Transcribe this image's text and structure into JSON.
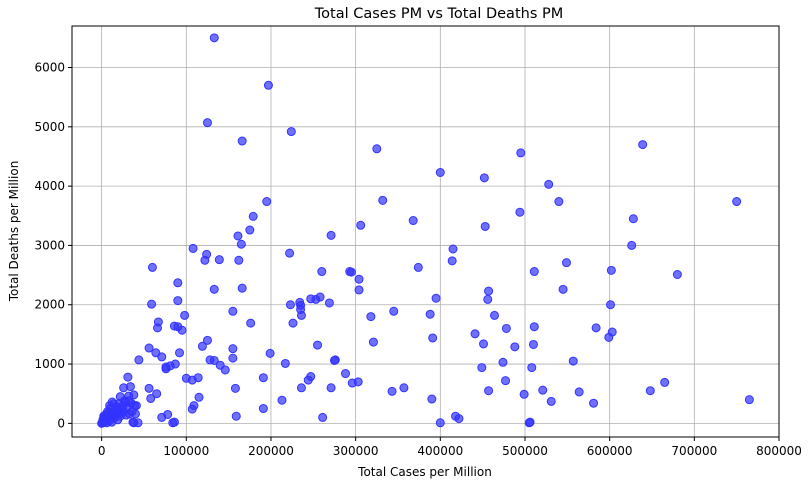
{
  "chart_data": {
    "type": "scatter",
    "title": "Total Cases PM vs Total Deaths PM",
    "xlabel": "Total Cases per Million",
    "ylabel": "Total Deaths per Million",
    "xlim": [
      -35000,
      800000
    ],
    "ylim": [
      -230,
      6700
    ],
    "xticks": [
      0,
      100000,
      200000,
      300000,
      400000,
      500000,
      600000,
      700000,
      800000
    ],
    "xtick_labels": [
      "0",
      "100000",
      "200000",
      "300000",
      "400000",
      "500000",
      "600000",
      "700000",
      "800000"
    ],
    "yticks": [
      0,
      1000,
      2000,
      3000,
      4000,
      5000,
      6000
    ],
    "ytick_labels": [
      "0",
      "1000",
      "2000",
      "3000",
      "4000",
      "5000",
      "6000"
    ],
    "grid": true,
    "marker_color": "#3333ff",
    "points": [
      [
        133000,
        6500
      ],
      [
        197000,
        5700
      ],
      [
        125000,
        5070
      ],
      [
        224000,
        4920
      ],
      [
        166000,
        4760
      ],
      [
        325000,
        4630
      ],
      [
        639000,
        4700
      ],
      [
        495000,
        4560
      ],
      [
        400000,
        4230
      ],
      [
        452000,
        4140
      ],
      [
        528000,
        4030
      ],
      [
        195000,
        3740
      ],
      [
        332000,
        3760
      ],
      [
        540000,
        3740
      ],
      [
        750000,
        3740
      ],
      [
        494000,
        3560
      ],
      [
        179000,
        3490
      ],
      [
        368000,
        3420
      ],
      [
        628000,
        3450
      ],
      [
        306000,
        3340
      ],
      [
        453000,
        3320
      ],
      [
        175000,
        3260
      ],
      [
        161000,
        3160
      ],
      [
        271000,
        3170
      ],
      [
        165000,
        3020
      ],
      [
        108000,
        2950
      ],
      [
        415000,
        2940
      ],
      [
        626000,
        3000
      ],
      [
        124000,
        2850
      ],
      [
        222000,
        2870
      ],
      [
        122000,
        2750
      ],
      [
        139000,
        2760
      ],
      [
        162000,
        2750
      ],
      [
        414000,
        2740
      ],
      [
        549000,
        2710
      ],
      [
        60000,
        2630
      ],
      [
        374000,
        2630
      ],
      [
        602000,
        2580
      ],
      [
        260000,
        2560
      ],
      [
        511000,
        2560
      ],
      [
        680000,
        2510
      ],
      [
        293000,
        2560
      ],
      [
        295000,
        2550
      ],
      [
        304000,
        2430
      ],
      [
        90000,
        2370
      ],
      [
        133000,
        2260
      ],
      [
        166000,
        2280
      ],
      [
        304000,
        2250
      ],
      [
        457000,
        2230
      ],
      [
        545000,
        2260
      ],
      [
        90000,
        2070
      ],
      [
        395000,
        2110
      ],
      [
        253000,
        2090
      ],
      [
        258000,
        2130
      ],
      [
        223000,
        2000
      ],
      [
        234000,
        2040
      ],
      [
        235000,
        1990
      ],
      [
        247000,
        2100
      ],
      [
        269000,
        2030
      ],
      [
        456000,
        2090
      ],
      [
        601000,
        2000
      ],
      [
        59000,
        2010
      ],
      [
        155000,
        1890
      ],
      [
        235000,
        1920
      ],
      [
        345000,
        1890
      ],
      [
        464000,
        1820
      ],
      [
        318000,
        1800
      ],
      [
        388000,
        1840
      ],
      [
        236000,
        1820
      ],
      [
        98000,
        1820
      ],
      [
        67000,
        1710
      ],
      [
        176000,
        1690
      ],
      [
        226000,
        1690
      ],
      [
        66000,
        1610
      ],
      [
        86000,
        1640
      ],
      [
        90000,
        1630
      ],
      [
        95000,
        1570
      ],
      [
        511000,
        1630
      ],
      [
        441000,
        1510
      ],
      [
        584000,
        1610
      ],
      [
        478000,
        1600
      ],
      [
        603000,
        1540
      ],
      [
        599000,
        1450
      ],
      [
        125000,
        1400
      ],
      [
        391000,
        1440
      ],
      [
        321000,
        1370
      ],
      [
        119000,
        1300
      ],
      [
        451000,
        1340
      ],
      [
        510000,
        1330
      ],
      [
        56000,
        1270
      ],
      [
        64000,
        1190
      ],
      [
        92000,
        1190
      ],
      [
        155000,
        1260
      ],
      [
        255000,
        1320
      ],
      [
        488000,
        1290
      ],
      [
        71000,
        1120
      ],
      [
        128000,
        1070
      ],
      [
        155000,
        1100
      ],
      [
        199000,
        1180
      ],
      [
        133000,
        1060
      ],
      [
        44000,
        1070
      ],
      [
        276000,
        1070
      ],
      [
        275000,
        1060
      ],
      [
        474000,
        1030
      ],
      [
        557000,
        1050
      ],
      [
        76000,
        950
      ],
      [
        81000,
        970
      ],
      [
        87000,
        1000
      ],
      [
        140000,
        980
      ],
      [
        217000,
        1010
      ],
      [
        76000,
        920
      ],
      [
        146000,
        900
      ],
      [
        449000,
        940
      ],
      [
        508000,
        940
      ],
      [
        288000,
        840
      ],
      [
        191000,
        770
      ],
      [
        247000,
        790
      ],
      [
        244000,
        730
      ],
      [
        100000,
        760
      ],
      [
        107000,
        730
      ],
      [
        114000,
        770
      ],
      [
        303000,
        700
      ],
      [
        296000,
        680
      ],
      [
        477000,
        720
      ],
      [
        665000,
        690
      ],
      [
        31000,
        780
      ],
      [
        34000,
        620
      ],
      [
        26000,
        600
      ],
      [
        56000,
        590
      ],
      [
        158000,
        590
      ],
      [
        236000,
        600
      ],
      [
        271000,
        600
      ],
      [
        357000,
        600
      ],
      [
        343000,
        540
      ],
      [
        457000,
        550
      ],
      [
        521000,
        560
      ],
      [
        564000,
        530
      ],
      [
        648000,
        550
      ],
      [
        65000,
        500
      ],
      [
        22000,
        450
      ],
      [
        32000,
        460
      ],
      [
        38000,
        480
      ],
      [
        390000,
        410
      ],
      [
        499000,
        490
      ],
      [
        531000,
        370
      ],
      [
        581000,
        340
      ],
      [
        765000,
        400
      ],
      [
        213000,
        390
      ],
      [
        109000,
        300
      ],
      [
        115000,
        440
      ],
      [
        35000,
        340
      ],
      [
        39000,
        300
      ],
      [
        58000,
        420
      ],
      [
        27000,
        380
      ],
      [
        191000,
        250
      ],
      [
        107000,
        240
      ],
      [
        159000,
        120
      ],
      [
        261000,
        100
      ],
      [
        418000,
        120
      ],
      [
        422000,
        80
      ],
      [
        71000,
        100
      ],
      [
        78000,
        150
      ],
      [
        40000,
        160
      ],
      [
        400000,
        10
      ],
      [
        505000,
        10
      ],
      [
        506000,
        20
      ],
      [
        84000,
        10
      ],
      [
        86000,
        20
      ],
      [
        37000,
        20
      ],
      [
        0,
        0
      ],
      [
        1500,
        60
      ],
      [
        2500,
        120
      ],
      [
        3000,
        20
      ],
      [
        4000,
        80
      ],
      [
        5000,
        150
      ],
      [
        6000,
        10
      ],
      [
        7000,
        200
      ],
      [
        8000,
        100
      ],
      [
        9000,
        40
      ],
      [
        10000,
        250
      ],
      [
        11000,
        120
      ],
      [
        12000,
        20
      ],
      [
        13000,
        180
      ],
      [
        14000,
        330
      ],
      [
        15000,
        90
      ],
      [
        16000,
        220
      ],
      [
        17000,
        140
      ],
      [
        18000,
        280
      ],
      [
        19000,
        60
      ],
      [
        20000,
        190
      ],
      [
        21000,
        340
      ],
      [
        22000,
        120
      ],
      [
        23000,
        240
      ],
      [
        24000,
        170
      ],
      [
        25000,
        290
      ],
      [
        26000,
        200
      ],
      [
        28000,
        350
      ],
      [
        29000,
        140
      ],
      [
        30000,
        260
      ],
      [
        32000,
        380
      ],
      [
        33000,
        160
      ],
      [
        36000,
        200
      ],
      [
        38000,
        10
      ],
      [
        41000,
        300
      ],
      [
        43000,
        10
      ],
      [
        9500,
        300
      ],
      [
        5500,
        40
      ],
      [
        3500,
        110
      ],
      [
        8500,
        160
      ],
      [
        12500,
        360
      ],
      [
        18500,
        230
      ],
      [
        1000,
        10
      ],
      [
        2000,
        30
      ]
    ]
  }
}
